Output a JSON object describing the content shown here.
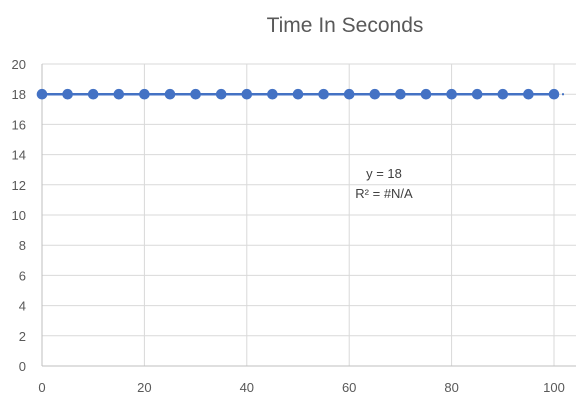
{
  "chart_data": {
    "type": "scatter",
    "title": "Time In Seconds",
    "xlabel": "",
    "ylabel": "",
    "xlim": [
      0,
      100
    ],
    "ylim": [
      0,
      20
    ],
    "x_ticks": [
      0,
      20,
      40,
      60,
      80,
      100
    ],
    "y_ticks": [
      0,
      2,
      4,
      6,
      8,
      10,
      12,
      14,
      16,
      18,
      20
    ],
    "grid": true,
    "legend": "none",
    "series": [
      {
        "color": "#4472C4",
        "x": [
          0,
          5,
          10,
          15,
          20,
          25,
          30,
          35,
          40,
          45,
          50,
          55,
          60,
          65,
          70,
          75,
          80,
          85,
          90,
          95,
          100
        ],
        "y": [
          18,
          18,
          18,
          18,
          18,
          18,
          18,
          18,
          18,
          18,
          18,
          18,
          18,
          18,
          18,
          18,
          18,
          18,
          18,
          18,
          18
        ]
      }
    ],
    "trendline": {
      "type": "linear",
      "x_start": 0,
      "x_end": 102,
      "color": "#4472C4",
      "equation": "y = 18",
      "r_squared": "R² = #N/A"
    }
  }
}
